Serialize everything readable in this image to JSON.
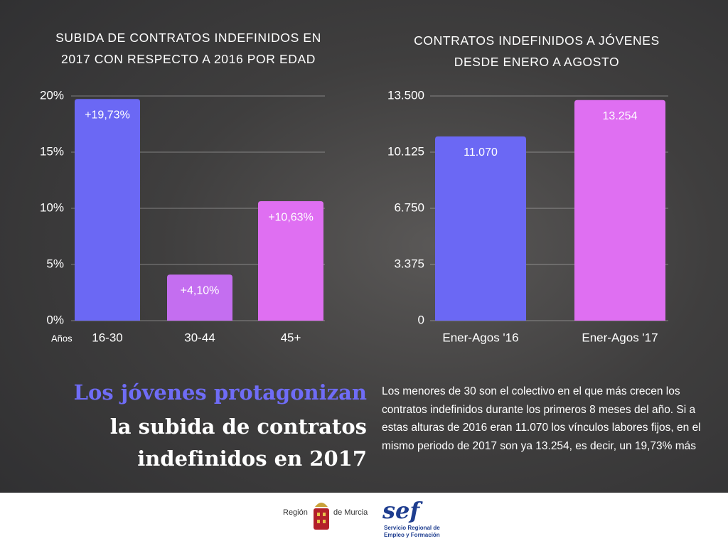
{
  "chart_data": [
    {
      "type": "bar",
      "title": "SUBIDA DE CONTRATOS INDEFINIDOS EN\n2017 CON RESPECTO A 2016 POR EDAD",
      "x_label": "Años",
      "categories": [
        "16-30",
        "30-44",
        "45+"
      ],
      "values": [
        19.73,
        4.1,
        10.63
      ],
      "value_labels": [
        "+19,73%",
        "+4,10%",
        "+10,63%"
      ],
      "colors": [
        "#6b68f4",
        "#c46ef0",
        "#df6ff2"
      ],
      "ylim": [
        0,
        20
      ],
      "yticks": [
        {
          "value": 0,
          "label": "0%"
        },
        {
          "value": 5,
          "label": "5%"
        },
        {
          "value": 10,
          "label": "10%"
        },
        {
          "value": 15,
          "label": "15%"
        },
        {
          "value": 20,
          "label": "20%"
        }
      ],
      "grid": true
    },
    {
      "type": "bar",
      "title": "CONTRATOS INDEFINIDOS A JÓVENES\nDESDE ENERO A AGOSTO",
      "categories": [
        "Ener-Agos '16",
        "Ener-Agos '17"
      ],
      "values": [
        11070,
        13254
      ],
      "value_labels": [
        "11.070",
        "13.254"
      ],
      "colors": [
        "#6b68f4",
        "#df6ff2"
      ],
      "ylim": [
        0,
        13500
      ],
      "yticks": [
        0,
        {
          "value": 3375,
          "label": "3.375"
        },
        {
          "value": 6750,
          "label": "6.750"
        },
        {
          "value": 10125,
          "label": "10.125"
        },
        {
          "value": 13500,
          "label": "13.500"
        }
      ],
      "grid": true
    }
  ],
  "headline": [
    "Los jóvenes protagonizan",
    "la subida de contratos",
    "indefinidos en 2017"
  ],
  "paragraph": "Los menores de 30 son el colectivo en el que más crecen los contratos indefinidos durante los primeros 8 meses del año. Si a estas alturas de 2016 eran 11.070 los vínculos labores fijos, en el mismo periodo de 2017 son ya 13.254, es decir, un 19,73% más",
  "footer": {
    "region_left": "Región",
    "region_right": "de Murcia",
    "sef_logo": "sef",
    "sef_line1": "Servicio Regional de",
    "sef_line2": "Empleo y Formación"
  }
}
